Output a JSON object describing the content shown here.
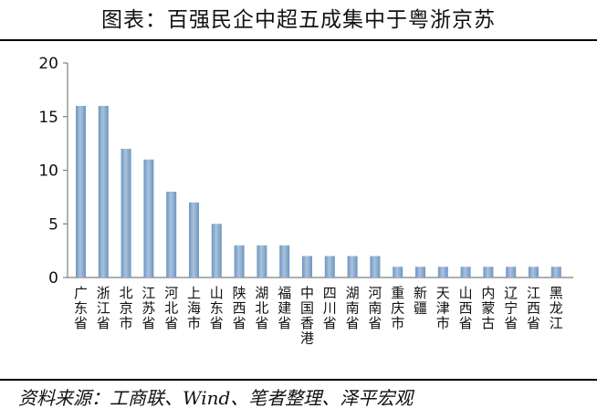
{
  "title": "图表：百强民企中超五成集中于粤浙京苏",
  "source": "资料来源：工商联、Wind、笔者整理、泽平宏观",
  "colors": {
    "bar": "#6f95bd",
    "bar_light": "#a8c3de",
    "axis": "#7f7f7f",
    "text": "#111111"
  },
  "chart_data": {
    "type": "bar",
    "categories": [
      "广东省",
      "浙江省",
      "北京市",
      "江苏省",
      "河北省",
      "上海市",
      "山东省",
      "陕西省",
      "湖北省",
      "福建省",
      "中国香港",
      "四川省",
      "湖南省",
      "河南省",
      "重庆市",
      "新疆",
      "天津市",
      "山西省",
      "内蒙古",
      "辽宁省",
      "江西省",
      "黑龙江"
    ],
    "values": [
      16,
      16,
      12,
      11,
      8,
      7,
      5,
      3,
      3,
      3,
      2,
      2,
      2,
      2,
      1,
      1,
      1,
      1,
      1,
      1,
      1,
      1
    ],
    "ylim": [
      0,
      20
    ],
    "yticks": [
      "0",
      "5",
      "10",
      "15",
      "20"
    ],
    "xlabel": "",
    "ylabel": "",
    "grid": false,
    "legend": "none"
  }
}
